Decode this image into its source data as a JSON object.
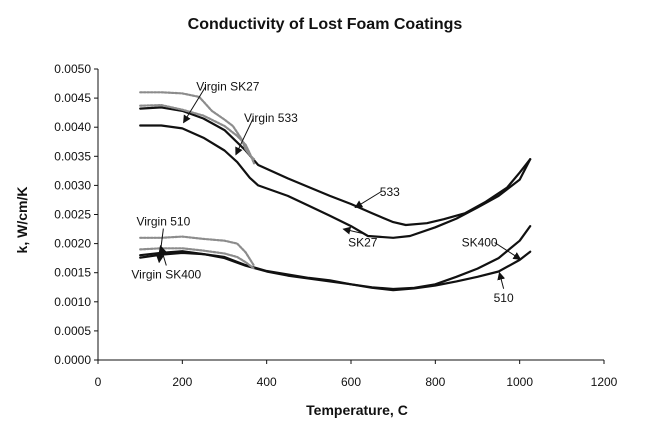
{
  "chart_data": {
    "type": "line",
    "title": "Conductivity of Lost Foam Coatings",
    "xlabel": "Temperature, C",
    "ylabel": "k, W/cm/K",
    "xlim": [
      0,
      1200
    ],
    "ylim": [
      0,
      0.005
    ],
    "x_ticks": [
      "0",
      "200",
      "400",
      "600",
      "800",
      "1000",
      "1200"
    ],
    "y_ticks": [
      "0.0000",
      "0.0005",
      "0.0010",
      "0.0015",
      "0.0020",
      "0.0025",
      "0.0030",
      "0.0035",
      "0.0040",
      "0.0045",
      "0.0050"
    ],
    "grid": false,
    "legend": "none",
    "series": [
      {
        "name": "533",
        "color": "#111111",
        "style": "solid",
        "points": [
          [
            100,
            0.00432
          ],
          [
            150,
            0.00434
          ],
          [
            200,
            0.00428
          ],
          [
            250,
            0.00415
          ],
          [
            300,
            0.00395
          ],
          [
            350,
            0.0036
          ],
          [
            380,
            0.00335
          ],
          [
            450,
            0.00312
          ],
          [
            500,
            0.00297
          ],
          [
            550,
            0.00282
          ],
          [
            600,
            0.00268
          ],
          [
            650,
            0.00252
          ],
          [
            700,
            0.00237
          ],
          [
            730,
            0.00232
          ],
          [
            780,
            0.00235
          ],
          [
            820,
            0.00242
          ],
          [
            870,
            0.00252
          ],
          [
            920,
            0.00272
          ],
          [
            970,
            0.00296
          ],
          [
            1000,
            0.00322
          ],
          [
            1025,
            0.00345
          ]
        ]
      },
      {
        "name": "SK27",
        "color": "#111111",
        "style": "solid",
        "points": [
          [
            100,
            0.00403
          ],
          [
            150,
            0.00403
          ],
          [
            200,
            0.00398
          ],
          [
            250,
            0.00382
          ],
          [
            300,
            0.0036
          ],
          [
            330,
            0.0034
          ],
          [
            360,
            0.00313
          ],
          [
            380,
            0.003
          ],
          [
            450,
            0.00282
          ],
          [
            500,
            0.00265
          ],
          [
            550,
            0.00248
          ],
          [
            600,
            0.0023
          ],
          [
            640,
            0.00213
          ],
          [
            700,
            0.0021
          ],
          [
            740,
            0.00213
          ],
          [
            800,
            0.00228
          ],
          [
            850,
            0.00243
          ],
          [
            900,
            0.00262
          ],
          [
            950,
            0.00282
          ],
          [
            1000,
            0.0031
          ],
          [
            1025,
            0.00345
          ]
        ]
      },
      {
        "name": "SK400",
        "color": "#111111",
        "style": "solid",
        "points": [
          [
            100,
            0.0018
          ],
          [
            150,
            0.00184
          ],
          [
            200,
            0.00187
          ],
          [
            250,
            0.00182
          ],
          [
            300,
            0.00175
          ],
          [
            350,
            0.00162
          ],
          [
            400,
            0.00152
          ],
          [
            450,
            0.00145
          ],
          [
            500,
            0.0014
          ],
          [
            550,
            0.00135
          ],
          [
            600,
            0.0013
          ],
          [
            650,
            0.00125
          ],
          [
            700,
            0.00122
          ],
          [
            750,
            0.00124
          ],
          [
            800,
            0.0013
          ],
          [
            850,
            0.00143
          ],
          [
            900,
            0.00157
          ],
          [
            950,
            0.00175
          ],
          [
            1000,
            0.00205
          ],
          [
            1025,
            0.0023
          ]
        ]
      },
      {
        "name": "510",
        "color": "#111111",
        "style": "solid",
        "points": [
          [
            100,
            0.00176
          ],
          [
            150,
            0.00181
          ],
          [
            200,
            0.00184
          ],
          [
            250,
            0.00182
          ],
          [
            300,
            0.00177
          ],
          [
            350,
            0.00163
          ],
          [
            400,
            0.00153
          ],
          [
            450,
            0.00147
          ],
          [
            500,
            0.00141
          ],
          [
            550,
            0.00137
          ],
          [
            600,
            0.0013
          ],
          [
            650,
            0.00124
          ],
          [
            700,
            0.0012
          ],
          [
            750,
            0.00123
          ],
          [
            800,
            0.00128
          ],
          [
            850,
            0.00135
          ],
          [
            900,
            0.00143
          ],
          [
            950,
            0.00152
          ],
          [
            1000,
            0.00172
          ],
          [
            1025,
            0.00186
          ]
        ]
      },
      {
        "name": "Virgin SK27",
        "color": "#8c8c8c",
        "style": "dotted",
        "points": [
          [
            100,
            0.0046
          ],
          [
            150,
            0.0046
          ],
          [
            200,
            0.00458
          ],
          [
            240,
            0.00452
          ],
          [
            270,
            0.00428
          ],
          [
            300,
            0.00413
          ],
          [
            320,
            0.00402
          ],
          [
            340,
            0.0038
          ],
          [
            350,
            0.00362
          ],
          [
            360,
            0.00352
          ],
          [
            370,
            0.00345
          ]
        ]
      },
      {
        "name": "Virgin 533",
        "color": "#8c8c8c",
        "style": "dotted",
        "points": [
          [
            100,
            0.00437
          ],
          [
            150,
            0.00438
          ],
          [
            200,
            0.0043
          ],
          [
            250,
            0.0042
          ],
          [
            300,
            0.00402
          ],
          [
            330,
            0.00385
          ],
          [
            350,
            0.0037
          ],
          [
            360,
            0.00355
          ],
          [
            370,
            0.00338
          ]
        ]
      },
      {
        "name": "Virgin 510",
        "color": "#8c8c8c",
        "style": "dotted",
        "points": [
          [
            100,
            0.0021
          ],
          [
            150,
            0.0021
          ],
          [
            200,
            0.00212
          ],
          [
            250,
            0.00208
          ],
          [
            300,
            0.00205
          ],
          [
            330,
            0.002
          ],
          [
            350,
            0.00185
          ],
          [
            370,
            0.00162
          ]
        ]
      },
      {
        "name": "Virgin SK400",
        "color": "#8c8c8c",
        "style": "dotted",
        "points": [
          [
            100,
            0.0019
          ],
          [
            150,
            0.00192
          ],
          [
            200,
            0.00192
          ],
          [
            250,
            0.00188
          ],
          [
            300,
            0.00183
          ],
          [
            330,
            0.00177
          ],
          [
            350,
            0.00168
          ],
          [
            370,
            0.00157
          ]
        ]
      }
    ],
    "annotations": [
      {
        "text": "Virgin SK27",
        "label_x": 308,
        "label_y": 0.00463,
        "arrow_to": [
          203,
          0.00408
        ]
      },
      {
        "text": "Virgin 533",
        "label_x": 410,
        "label_y": 0.00409,
        "arrow_to": [
          327,
          0.00353
        ]
      },
      {
        "text": "533",
        "label_x": 692,
        "label_y": 0.00282,
        "arrow_to": [
          610,
          0.00262
        ]
      },
      {
        "text": "SK27",
        "label_x": 628,
        "label_y": 0.00195,
        "arrow_to": [
          582,
          0.00225
        ]
      },
      {
        "text": "SK400",
        "label_x": 905,
        "label_y": 0.00195,
        "arrow_to": [
          1002,
          0.00173
        ]
      },
      {
        "text": "510",
        "label_x": 962,
        "label_y": 0.001,
        "arrow_to": [
          952,
          0.0015
        ]
      },
      {
        "text": "Virgin 510",
        "label_x": 155,
        "label_y": 0.00231,
        "arrow_to": [
          145,
          0.00168
        ]
      },
      {
        "text": "Virgin SK400",
        "label_x": 162,
        "label_y": 0.0014,
        "arrow_to": [
          148,
          0.00196
        ]
      }
    ]
  }
}
